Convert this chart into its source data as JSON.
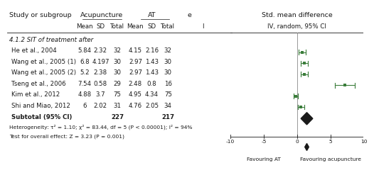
{
  "title_left": "Study or subgroup",
  "section_label": "4.1.2 SIT of treatment after",
  "studies": [
    {
      "name": "He et al., 2004",
      "acu_mean": "5.84",
      "acu_sd": "2.32",
      "acu_n": "32",
      "at_mean": "4.15",
      "at_sd": "2.16",
      "at_n": "32",
      "smd": 0.77,
      "ci_lo": 0.27,
      "ci_hi": 1.27
    },
    {
      "name": "Wang et al., 2005 (1)",
      "acu_mean": "6.8",
      "acu_sd": "4.197",
      "acu_n": "30",
      "at_mean": "2.97",
      "at_sd": "1.43",
      "at_n": "30",
      "smd": 1.12,
      "ci_lo": 0.59,
      "ci_hi": 1.65
    },
    {
      "name": "Wang et al., 2005 (2)",
      "acu_mean": "5.2",
      "acu_sd": "2.38",
      "acu_n": "30",
      "at_mean": "2.97",
      "at_sd": "1.43",
      "at_n": "30",
      "smd": 1.08,
      "ci_lo": 0.55,
      "ci_hi": 1.61
    },
    {
      "name": "Tseng et al., 2006",
      "acu_mean": "7.54",
      "acu_sd": "0.58",
      "acu_n": "29",
      "at_mean": "2.48",
      "at_sd": "0.8",
      "at_n": "16",
      "smd": 7.2,
      "ci_lo": 5.7,
      "ci_hi": 8.7
    },
    {
      "name": "Kim et al., 2012",
      "acu_mean": "4.88",
      "acu_sd": "3.7",
      "acu_n": "75",
      "at_mean": "4.95",
      "at_sd": "4.34",
      "at_n": "75",
      "smd": -0.17,
      "ci_lo": -0.49,
      "ci_hi": 0.15
    },
    {
      "name": "Shi and Miao, 2012",
      "acu_mean": "6",
      "acu_sd": "2.02",
      "acu_n": "31",
      "at_mean": "4.76",
      "at_sd": "2.05",
      "at_n": "34",
      "smd": 0.6,
      "ci_lo": 0.1,
      "ci_hi": 1.1
    }
  ],
  "subtotal_n_acu": "227",
  "subtotal_n_at": "217",
  "subtotal_smd": 1.47,
  "subtotal_ci_lo": 0.58,
  "subtotal_ci_hi": 2.36,
  "heterogeneity_text": "Heterogeneity: τ² = 1.10; χ² = 83.44, df = 5 (P < 0.00001); I² = 94%",
  "overall_text": "Test for overall effect: Z = 3.23 (P = 0.001)",
  "xmin": -10,
  "xmax": 10,
  "xticks": [
    -10,
    -5,
    0,
    5,
    10
  ],
  "xlabel_left": "Favouring AT",
  "xlabel_right": "Favouring acupuncture",
  "bg_color": "#ffffff",
  "marker_color": "#3a7d3a",
  "diamond_color": "#1a1a1a",
  "text_color": "#1a1a1a",
  "font_size": 6.2,
  "header_font_size": 6.8
}
